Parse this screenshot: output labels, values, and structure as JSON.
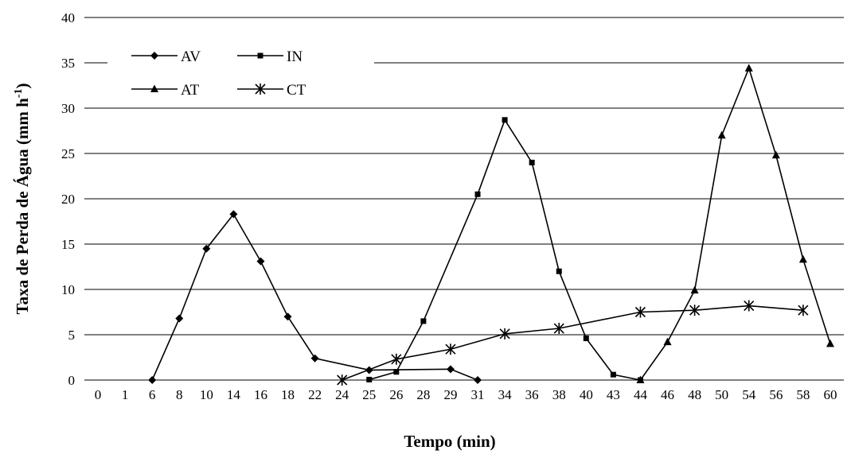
{
  "chart_data": {
    "type": "line",
    "xlabel": "Tempo (min)",
    "ylabel": "Taxa de Perda de Água  (mm h",
    "ylabel_sup": "-1",
    "ylabel_close": ")",
    "ylim": [
      0,
      40
    ],
    "yticks": [
      0,
      5,
      10,
      15,
      20,
      25,
      30,
      35,
      40
    ],
    "categories": [
      "0",
      "1",
      "6",
      "8",
      "10",
      "14",
      "16",
      "18",
      "22",
      "24",
      "25",
      "26",
      "28",
      "29",
      "31",
      "34",
      "36",
      "38",
      "40",
      "43",
      "44",
      "46",
      "48",
      "50",
      "54",
      "56",
      "58",
      "60"
    ],
    "grid": true,
    "legend_position": "top-left",
    "series": [
      {
        "name": "AV",
        "marker": "diamond",
        "values": [
          null,
          null,
          0,
          6.8,
          14.5,
          18.3,
          13.1,
          7.0,
          2.4,
          null,
          1.1,
          null,
          null,
          1.2,
          0,
          null,
          null,
          null,
          null,
          null,
          null,
          null,
          null,
          null,
          null,
          null,
          null,
          null
        ]
      },
      {
        "name": "IN",
        "marker": "square",
        "values": [
          null,
          null,
          null,
          null,
          null,
          null,
          null,
          null,
          null,
          null,
          0.05,
          0.9,
          6.5,
          null,
          20.5,
          28.7,
          24.0,
          12.0,
          4.6,
          0.6,
          0,
          null,
          null,
          null,
          null,
          null,
          null,
          null
        ]
      },
      {
        "name": "AT",
        "marker": "triangle",
        "values": [
          null,
          null,
          null,
          null,
          null,
          null,
          null,
          null,
          null,
          null,
          null,
          null,
          null,
          null,
          null,
          null,
          null,
          null,
          null,
          null,
          0,
          4.2,
          9.9,
          27.0,
          34.4,
          24.8,
          13.3,
          4.0
        ]
      },
      {
        "name": "CT",
        "marker": "star",
        "values": [
          null,
          null,
          null,
          null,
          null,
          null,
          null,
          null,
          null,
          0,
          null,
          2.3,
          null,
          3.4,
          null,
          5.1,
          null,
          5.7,
          null,
          null,
          7.5,
          null,
          7.7,
          null,
          8.2,
          null,
          7.7,
          null
        ]
      }
    ]
  }
}
